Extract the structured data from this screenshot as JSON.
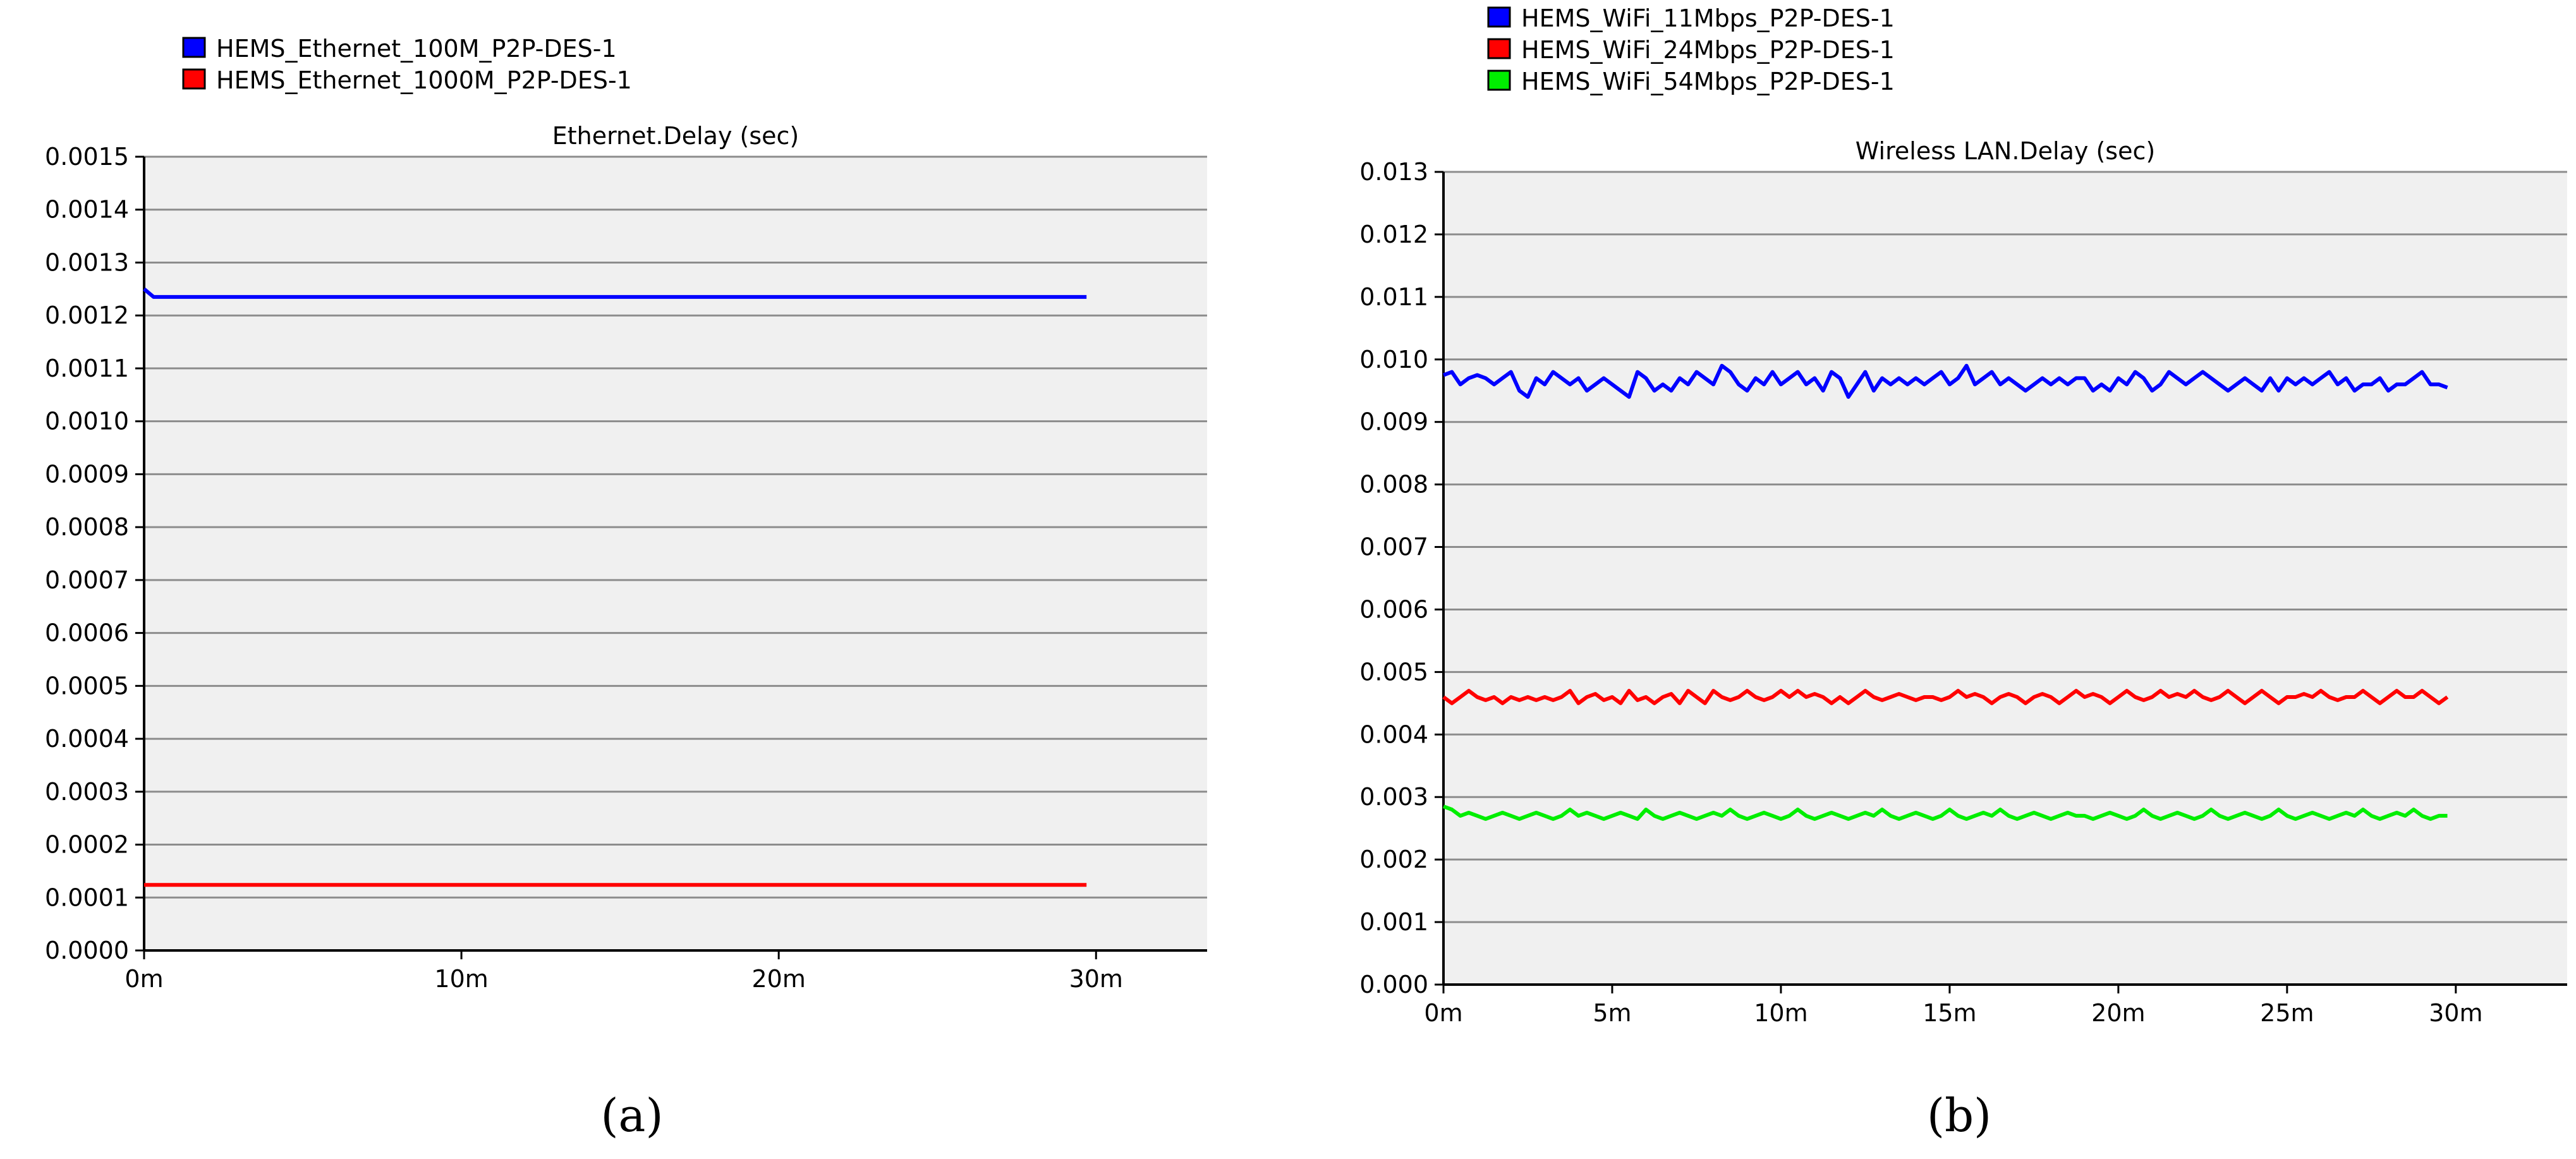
{
  "chart_data": [
    {
      "type": "line",
      "title": "Ethernet.Delay (sec)",
      "caption": "(a)",
      "xlabel": "",
      "ylabel": "",
      "xlim": [
        0,
        33.5
      ],
      "ylim": [
        0,
        0.0015
      ],
      "x_ticks": [
        0,
        10,
        20,
        30
      ],
      "x_tick_labels": [
        "0m",
        "10m",
        "20m",
        "30m"
      ],
      "y_ticks": [
        0,
        0.0001,
        0.0002,
        0.0003,
        0.0004,
        0.0005,
        0.0006,
        0.0007,
        0.0008,
        0.0009,
        0.001,
        0.0011,
        0.0012,
        0.0013,
        0.0014,
        0.0015
      ],
      "y_tick_labels": [
        "0.0000",
        "0.0001",
        "0.0002",
        "0.0003",
        "0.0004",
        "0.0005",
        "0.0006",
        "0.0007",
        "0.0008",
        "0.0009",
        "0.0010",
        "0.0011",
        "0.0012",
        "0.0013",
        "0.0014",
        "0.0015"
      ],
      "grid": true,
      "legend_position": "top-left",
      "series": [
        {
          "name": "HEMS_Ethernet_100M_P2P-DES-1",
          "color": "#0000ff",
          "x": [
            0,
            0.3,
            5,
            10,
            15,
            20,
            25,
            29.7
          ],
          "y": [
            0.00125,
            0.001235,
            0.001235,
            0.001235,
            0.001235,
            0.001235,
            0.001235,
            0.001235
          ]
        },
        {
          "name": "HEMS_Ethernet_1000M_P2P-DES-1",
          "color": "#ff0000",
          "x": [
            0,
            5,
            10,
            15,
            20,
            25,
            29.7
          ],
          "y": [
            0.000124,
            0.000124,
            0.000124,
            0.000124,
            0.000124,
            0.000124,
            0.000124
          ]
        }
      ]
    },
    {
      "type": "line",
      "title": "Wireless LAN.Delay (sec)",
      "caption": "(b)",
      "xlabel": "",
      "ylabel": "",
      "xlim": [
        0,
        33.3
      ],
      "ylim": [
        0,
        0.013
      ],
      "x_ticks": [
        0,
        5,
        10,
        15,
        20,
        25,
        30
      ],
      "x_tick_labels": [
        "0m",
        "5m",
        "10m",
        "15m",
        "20m",
        "25m",
        "30m"
      ],
      "y_ticks": [
        0,
        0.001,
        0.002,
        0.003,
        0.004,
        0.005,
        0.006,
        0.007,
        0.008,
        0.009,
        0.01,
        0.011,
        0.012,
        0.013
      ],
      "y_tick_labels": [
        "0.000",
        "0.001",
        "0.002",
        "0.003",
        "0.004",
        "0.005",
        "0.006",
        "0.007",
        "0.008",
        "0.009",
        "0.010",
        "0.011",
        "0.012",
        "0.013"
      ],
      "grid": true,
      "legend_position": "top-left",
      "series": [
        {
          "name": "HEMS_WiFi_11Mbps_P2P-DES-1",
          "color": "#0000ff",
          "x": [
            0,
            0.25,
            0.5,
            0.75,
            1.0,
            1.25,
            1.5,
            1.75,
            2.0,
            2.25,
            2.5,
            2.75,
            3.0,
            3.25,
            3.5,
            3.75,
            4.0,
            4.25,
            4.5,
            4.75,
            5.0,
            5.25,
            5.5,
            5.75,
            6.0,
            6.25,
            6.5,
            6.75,
            7.0,
            7.25,
            7.5,
            7.75,
            8.0,
            8.25,
            8.5,
            8.75,
            9.0,
            9.25,
            9.5,
            9.75,
            10.0,
            10.25,
            10.5,
            10.75,
            11.0,
            11.25,
            11.5,
            11.75,
            12.0,
            12.25,
            12.5,
            12.75,
            13.0,
            13.25,
            13.5,
            13.75,
            14.0,
            14.25,
            14.5,
            14.75,
            15.0,
            15.25,
            15.5,
            15.75,
            16.0,
            16.25,
            16.5,
            16.75,
            17.0,
            17.25,
            17.5,
            17.75,
            18.0,
            18.25,
            18.5,
            18.75,
            19.0,
            19.25,
            19.5,
            19.75,
            20.0,
            20.25,
            20.5,
            20.75,
            21.0,
            21.25,
            21.5,
            21.75,
            22.0,
            22.25,
            22.5,
            22.75,
            23.0,
            23.25,
            23.5,
            23.75,
            24.0,
            24.25,
            24.5,
            24.75,
            25.0,
            25.25,
            25.5,
            25.75,
            26.0,
            26.25,
            26.5,
            26.75,
            27.0,
            27.25,
            27.5,
            27.75,
            28.0,
            28.25,
            28.5,
            28.75,
            29.0,
            29.25,
            29.5,
            29.75
          ],
          "y": [
            0.00975,
            0.0098,
            0.0096,
            0.0097,
            0.00975,
            0.0097,
            0.0096,
            0.0097,
            0.0098,
            0.0095,
            0.0094,
            0.0097,
            0.0096,
            0.0098,
            0.0097,
            0.0096,
            0.0097,
            0.0095,
            0.0096,
            0.0097,
            0.0096,
            0.0095,
            0.0094,
            0.0098,
            0.0097,
            0.0095,
            0.0096,
            0.0095,
            0.0097,
            0.0096,
            0.0098,
            0.0097,
            0.0096,
            0.0099,
            0.0098,
            0.0096,
            0.0095,
            0.0097,
            0.0096,
            0.0098,
            0.0096,
            0.0097,
            0.0098,
            0.0096,
            0.0097,
            0.0095,
            0.0098,
            0.0097,
            0.0094,
            0.0096,
            0.0098,
            0.0095,
            0.0097,
            0.0096,
            0.0097,
            0.0096,
            0.0097,
            0.0096,
            0.0097,
            0.0098,
            0.0096,
            0.0097,
            0.0099,
            0.0096,
            0.0097,
            0.0098,
            0.0096,
            0.0097,
            0.0096,
            0.0095,
            0.0096,
            0.0097,
            0.0096,
            0.0097,
            0.0096,
            0.0097,
            0.0097,
            0.0095,
            0.0096,
            0.0095,
            0.0097,
            0.0096,
            0.0098,
            0.0097,
            0.0095,
            0.0096,
            0.0098,
            0.0097,
            0.0096,
            0.0097,
            0.0098,
            0.0097,
            0.0096,
            0.0095,
            0.0096,
            0.0097,
            0.0096,
            0.0095,
            0.0097,
            0.0095,
            0.0097,
            0.0096,
            0.0097,
            0.0096,
            0.0097,
            0.0098,
            0.0096,
            0.0097,
            0.0095,
            0.0096,
            0.0096,
            0.0097,
            0.0095,
            0.0096,
            0.0096,
            0.0097,
            0.0098,
            0.0096,
            0.0096,
            0.00955
          ]
        },
        {
          "name": "HEMS_WiFi_24Mbps_P2P-DES-1",
          "color": "#ff0000",
          "x": [
            0,
            0.25,
            0.5,
            0.75,
            1.0,
            1.25,
            1.5,
            1.75,
            2.0,
            2.25,
            2.5,
            2.75,
            3.0,
            3.25,
            3.5,
            3.75,
            4.0,
            4.25,
            4.5,
            4.75,
            5.0,
            5.25,
            5.5,
            5.75,
            6.0,
            6.25,
            6.5,
            6.75,
            7.0,
            7.25,
            7.5,
            7.75,
            8.0,
            8.25,
            8.5,
            8.75,
            9.0,
            9.25,
            9.5,
            9.75,
            10.0,
            10.25,
            10.5,
            10.75,
            11.0,
            11.25,
            11.5,
            11.75,
            12.0,
            12.25,
            12.5,
            12.75,
            13.0,
            13.25,
            13.5,
            13.75,
            14.0,
            14.25,
            14.5,
            14.75,
            15.0,
            15.25,
            15.5,
            15.75,
            16.0,
            16.25,
            16.5,
            16.75,
            17.0,
            17.25,
            17.5,
            17.75,
            18.0,
            18.25,
            18.5,
            18.75,
            19.0,
            19.25,
            19.5,
            19.75,
            20.0,
            20.25,
            20.5,
            20.75,
            21.0,
            21.25,
            21.5,
            21.75,
            22.0,
            22.25,
            22.5,
            22.75,
            23.0,
            23.25,
            23.5,
            23.75,
            24.0,
            24.25,
            24.5,
            24.75,
            25.0,
            25.25,
            25.5,
            25.75,
            26.0,
            26.25,
            26.5,
            26.75,
            27.0,
            27.25,
            27.5,
            27.75,
            28.0,
            28.25,
            28.5,
            28.75,
            29.0,
            29.25,
            29.5,
            29.75
          ],
          "y": [
            0.0046,
            0.0045,
            0.0046,
            0.0047,
            0.0046,
            0.00455,
            0.0046,
            0.0045,
            0.0046,
            0.00455,
            0.0046,
            0.00455,
            0.0046,
            0.00455,
            0.0046,
            0.0047,
            0.0045,
            0.0046,
            0.00465,
            0.00455,
            0.0046,
            0.0045,
            0.0047,
            0.00455,
            0.0046,
            0.0045,
            0.0046,
            0.00465,
            0.0045,
            0.0047,
            0.0046,
            0.0045,
            0.0047,
            0.0046,
            0.00455,
            0.0046,
            0.0047,
            0.0046,
            0.00455,
            0.0046,
            0.0047,
            0.0046,
            0.0047,
            0.0046,
            0.00465,
            0.0046,
            0.0045,
            0.0046,
            0.0045,
            0.0046,
            0.0047,
            0.0046,
            0.00455,
            0.0046,
            0.00465,
            0.0046,
            0.00455,
            0.0046,
            0.0046,
            0.00455,
            0.0046,
            0.0047,
            0.0046,
            0.00465,
            0.0046,
            0.0045,
            0.0046,
            0.00465,
            0.0046,
            0.0045,
            0.0046,
            0.00465,
            0.0046,
            0.0045,
            0.0046,
            0.0047,
            0.0046,
            0.00465,
            0.0046,
            0.0045,
            0.0046,
            0.0047,
            0.0046,
            0.00455,
            0.0046,
            0.0047,
            0.0046,
            0.00465,
            0.0046,
            0.0047,
            0.0046,
            0.00455,
            0.0046,
            0.0047,
            0.0046,
            0.0045,
            0.0046,
            0.0047,
            0.0046,
            0.0045,
            0.0046,
            0.0046,
            0.00465,
            0.0046,
            0.0047,
            0.0046,
            0.00455,
            0.0046,
            0.0046,
            0.0047,
            0.0046,
            0.0045,
            0.0046,
            0.0047,
            0.0046,
            0.0046,
            0.0047,
            0.0046,
            0.0045,
            0.0046
          ]
        },
        {
          "name": "HEMS_WiFi_54Mbps_P2P-DES-1",
          "color": "#00ee00",
          "x": [
            0,
            0.25,
            0.5,
            0.75,
            1.0,
            1.25,
            1.5,
            1.75,
            2.0,
            2.25,
            2.5,
            2.75,
            3.0,
            3.25,
            3.5,
            3.75,
            4.0,
            4.25,
            4.5,
            4.75,
            5.0,
            5.25,
            5.5,
            5.75,
            6.0,
            6.25,
            6.5,
            6.75,
            7.0,
            7.25,
            7.5,
            7.75,
            8.0,
            8.25,
            8.5,
            8.75,
            9.0,
            9.25,
            9.5,
            9.75,
            10.0,
            10.25,
            10.5,
            10.75,
            11.0,
            11.25,
            11.5,
            11.75,
            12.0,
            12.25,
            12.5,
            12.75,
            13.0,
            13.25,
            13.5,
            13.75,
            14.0,
            14.25,
            14.5,
            14.75,
            15.0,
            15.25,
            15.5,
            15.75,
            16.0,
            16.25,
            16.5,
            16.75,
            17.0,
            17.25,
            17.5,
            17.75,
            18.0,
            18.25,
            18.5,
            18.75,
            19.0,
            19.25,
            19.5,
            19.75,
            20.0,
            20.25,
            20.5,
            20.75,
            21.0,
            21.25,
            21.5,
            21.75,
            22.0,
            22.25,
            22.5,
            22.75,
            23.0,
            23.25,
            23.5,
            23.75,
            24.0,
            24.25,
            24.5,
            24.75,
            25.0,
            25.25,
            25.5,
            25.75,
            26.0,
            26.25,
            26.5,
            26.75,
            27.0,
            27.25,
            27.5,
            27.75,
            28.0,
            28.25,
            28.5,
            28.75,
            29.0,
            29.25,
            29.5,
            29.75
          ],
          "y": [
            0.00285,
            0.0028,
            0.0027,
            0.00275,
            0.0027,
            0.00265,
            0.0027,
            0.00275,
            0.0027,
            0.00265,
            0.0027,
            0.00275,
            0.0027,
            0.00265,
            0.0027,
            0.0028,
            0.0027,
            0.00275,
            0.0027,
            0.00265,
            0.0027,
            0.00275,
            0.0027,
            0.00265,
            0.0028,
            0.0027,
            0.00265,
            0.0027,
            0.00275,
            0.0027,
            0.00265,
            0.0027,
            0.00275,
            0.0027,
            0.0028,
            0.0027,
            0.00265,
            0.0027,
            0.00275,
            0.0027,
            0.00265,
            0.0027,
            0.0028,
            0.0027,
            0.00265,
            0.0027,
            0.00275,
            0.0027,
            0.00265,
            0.0027,
            0.00275,
            0.0027,
            0.0028,
            0.0027,
            0.00265,
            0.0027,
            0.00275,
            0.0027,
            0.00265,
            0.0027,
            0.0028,
            0.0027,
            0.00265,
            0.0027,
            0.00275,
            0.0027,
            0.0028,
            0.0027,
            0.00265,
            0.0027,
            0.00275,
            0.0027,
            0.00265,
            0.0027,
            0.00275,
            0.0027,
            0.0027,
            0.00265,
            0.0027,
            0.00275,
            0.0027,
            0.00265,
            0.0027,
            0.0028,
            0.0027,
            0.00265,
            0.0027,
            0.00275,
            0.0027,
            0.00265,
            0.0027,
            0.0028,
            0.0027,
            0.00265,
            0.0027,
            0.00275,
            0.0027,
            0.00265,
            0.0027,
            0.0028,
            0.0027,
            0.00265,
            0.0027,
            0.00275,
            0.0027,
            0.00265,
            0.0027,
            0.00275,
            0.0027,
            0.0028,
            0.0027,
            0.00265,
            0.0027,
            0.00275,
            0.0027,
            0.0028,
            0.0027,
            0.00265,
            0.0027,
            0.0027
          ]
        }
      ]
    }
  ]
}
